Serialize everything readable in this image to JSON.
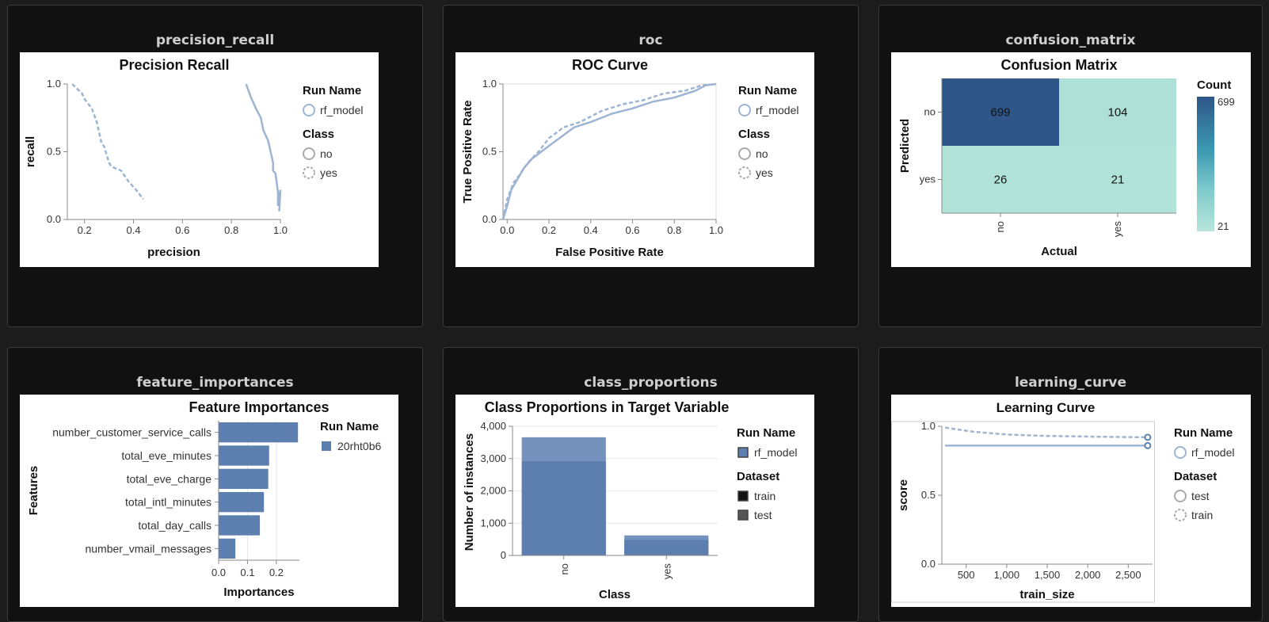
{
  "panels": [
    {
      "id": "precision_recall",
      "title": "precision_recall"
    },
    {
      "id": "roc",
      "title": "roc"
    },
    {
      "id": "confusion_matrix",
      "title": "confusion_matrix"
    },
    {
      "id": "feature_importances",
      "title": "feature_importances"
    },
    {
      "id": "class_proportions",
      "title": "class_proportions"
    },
    {
      "id": "learning_curve",
      "title": "learning_curve"
    }
  ],
  "chart_data": [
    {
      "id": "precision_recall",
      "type": "line",
      "title": "Precision Recall",
      "xlabel": "precision",
      "ylabel": "recall",
      "xlim": [
        0.13,
        1.0
      ],
      "ylim": [
        0,
        1
      ],
      "xticks": [
        0.2,
        0.4,
        0.6,
        0.8,
        1.0
      ],
      "xtick_labels": [
        "0.2",
        "0.4",
        "0.6",
        "0.8",
        "1.0"
      ],
      "yticks": [
        0,
        0.5,
        1.0
      ],
      "ytick_labels": [
        "0.0",
        "0.5",
        "1.0"
      ],
      "legend": {
        "position": "right",
        "groups": [
          {
            "title": "Run Name",
            "entries": [
              {
                "label": "rf_model",
                "style": "solid"
              }
            ]
          },
          {
            "title": "Class",
            "entries": [
              {
                "label": "no",
                "style": "solid-gray"
              },
              {
                "label": "yes",
                "style": "dashed-gray"
              }
            ]
          }
        ]
      },
      "series": [
        {
          "name": "no",
          "style": "solid",
          "x": [
            0.86,
            0.87,
            0.88,
            0.9,
            0.92,
            0.93,
            0.95,
            0.96,
            0.97,
            0.97,
            0.98,
            0.99,
            0.99,
            1.0,
            0.995
          ],
          "y": [
            1.0,
            0.95,
            0.9,
            0.82,
            0.75,
            0.66,
            0.58,
            0.5,
            0.42,
            0.36,
            0.34,
            0.2,
            0.1,
            0.22,
            0.06
          ]
        },
        {
          "name": "yes",
          "style": "dashed",
          "x": [
            0.15,
            0.19,
            0.2,
            0.23,
            0.25,
            0.27,
            0.28,
            0.3,
            0.31,
            0.35,
            0.38,
            0.41,
            0.44
          ],
          "y": [
            1.0,
            0.93,
            0.89,
            0.82,
            0.72,
            0.56,
            0.54,
            0.42,
            0.39,
            0.36,
            0.28,
            0.22,
            0.15
          ]
        }
      ]
    },
    {
      "id": "roc",
      "type": "line",
      "title": "ROC Curve",
      "xlabel": "False Positive Rate",
      "ylabel": "True Positive Rate",
      "xlim": [
        -0.02,
        1.0
      ],
      "ylim": [
        0,
        1
      ],
      "xticks": [
        0,
        0.2,
        0.4,
        0.6,
        0.8,
        1.0
      ],
      "xtick_labels": [
        "0.0",
        "0.2",
        "0.4",
        "0.6",
        "0.8",
        "1.0"
      ],
      "yticks": [
        0,
        0.5,
        1.0
      ],
      "ytick_labels": [
        "0.0",
        "0.5",
        "1.0"
      ],
      "legend": {
        "position": "right",
        "groups": [
          {
            "title": "Run Name",
            "entries": [
              {
                "label": "rf_model",
                "style": "solid"
              }
            ]
          },
          {
            "title": "Class",
            "entries": [
              {
                "label": "no",
                "style": "solid-gray"
              },
              {
                "label": "yes",
                "style": "dashed-gray"
              }
            ]
          }
        ]
      },
      "series": [
        {
          "name": "no",
          "style": "solid",
          "x": [
            -0.02,
            0.0,
            0.02,
            0.05,
            0.08,
            0.12,
            0.18,
            0.25,
            0.32,
            0.4,
            0.5,
            0.6,
            0.7,
            0.8,
            0.9,
            0.95,
            1.0
          ],
          "y": [
            0.0,
            0.1,
            0.22,
            0.3,
            0.38,
            0.45,
            0.52,
            0.6,
            0.68,
            0.72,
            0.78,
            0.82,
            0.87,
            0.9,
            0.95,
            0.99,
            1.0
          ]
        },
        {
          "name": "yes",
          "style": "dashed",
          "x": [
            -0.02,
            0.0,
            0.03,
            0.06,
            0.1,
            0.15,
            0.2,
            0.27,
            0.35,
            0.45,
            0.55,
            0.65,
            0.75,
            0.85,
            0.93,
            1.0
          ],
          "y": [
            0.0,
            0.15,
            0.27,
            0.33,
            0.42,
            0.5,
            0.6,
            0.68,
            0.72,
            0.8,
            0.85,
            0.88,
            0.93,
            0.95,
            0.99,
            1.0
          ]
        }
      ]
    },
    {
      "id": "confusion_matrix",
      "type": "heatmap",
      "title": "Confusion Matrix",
      "xlabel": "Actual",
      "ylabel": "Predicted",
      "x": [
        "no",
        "yes"
      ],
      "y": [
        "no",
        "yes"
      ],
      "values": [
        [
          699,
          104
        ],
        [
          26,
          21
        ]
      ],
      "legend": {
        "title": "Count",
        "min": 21,
        "max": 699,
        "min_label": "21",
        "max_label": "699"
      }
    },
    {
      "id": "feature_importances",
      "type": "bar",
      "orientation": "horizontal",
      "title": "Feature Importances",
      "xlabel": "Importances",
      "ylabel": "Features",
      "xlim": [
        0,
        0.28
      ],
      "xticks": [
        0.0,
        0.1,
        0.2
      ],
      "xtick_labels": [
        "0.0",
        "0.1",
        "0.2"
      ],
      "categories": [
        "number_customer_service_calls",
        "total_eve_minutes",
        "total_eve_charge",
        "total_intl_minutes",
        "total_day_calls",
        "number_vmail_messages"
      ],
      "values": [
        0.275,
        0.175,
        0.172,
        0.157,
        0.143,
        0.058
      ],
      "legend": {
        "position": "right",
        "groups": [
          {
            "title": "Run Name",
            "entries": [
              {
                "label": "20rht0b6",
                "style": "square"
              }
            ]
          }
        ]
      }
    },
    {
      "id": "class_proportions",
      "type": "bar",
      "title": "Class Proportions in Target Variable",
      "xlabel": "Class",
      "ylabel": "Number of instances",
      "ylim": [
        0,
        4000
      ],
      "yticks": [
        0,
        1000,
        2000,
        3000,
        4000
      ],
      "ytick_labels": [
        "0",
        "1,000",
        "2,000",
        "3,000",
        "4,000"
      ],
      "categories": [
        "no",
        "yes"
      ],
      "series": [
        {
          "name": "train",
          "values": [
            2920,
            480
          ]
        },
        {
          "name": "test",
          "values": [
            3660,
            620
          ]
        }
      ],
      "legend": {
        "position": "right",
        "groups": [
          {
            "title": "Run Name",
            "entries": [
              {
                "label": "rf_model",
                "style": "square-blue"
              }
            ]
          },
          {
            "title": "Dataset",
            "entries": [
              {
                "label": "train",
                "style": "square-black"
              },
              {
                "label": "test",
                "style": "square-gray"
              }
            ]
          }
        ]
      }
    },
    {
      "id": "learning_curve",
      "type": "line",
      "title": "Learning Curve",
      "xlabel": "train_size",
      "ylabel": "score",
      "xlim": [
        200,
        2800
      ],
      "ylim": [
        0,
        1
      ],
      "xticks": [
        500,
        1000,
        1500,
        2000,
        2500
      ],
      "xtick_labels": [
        "500",
        "1,000",
        "1,500",
        "2,000",
        "2,500"
      ],
      "yticks": [
        0,
        0.5,
        1.0
      ],
      "ytick_labels": [
        "0.0",
        "0.5",
        "1.0"
      ],
      "legend": {
        "position": "right",
        "groups": [
          {
            "title": "Run Name",
            "entries": [
              {
                "label": "rf_model",
                "style": "solid"
              }
            ]
          },
          {
            "title": "Dataset",
            "entries": [
              {
                "label": "test",
                "style": "solid-gray"
              },
              {
                "label": "train",
                "style": "dashed-gray"
              }
            ]
          }
        ]
      },
      "series": [
        {
          "name": "test",
          "style": "solid",
          "x": [
            240,
            2740
          ],
          "y": [
            0.86,
            0.86
          ]
        },
        {
          "name": "train",
          "style": "dashed",
          "x": [
            240,
            600,
            1000,
            1500,
            2000,
            2740
          ],
          "y": [
            0.99,
            0.96,
            0.94,
            0.93,
            0.925,
            0.92
          ]
        }
      ]
    }
  ]
}
